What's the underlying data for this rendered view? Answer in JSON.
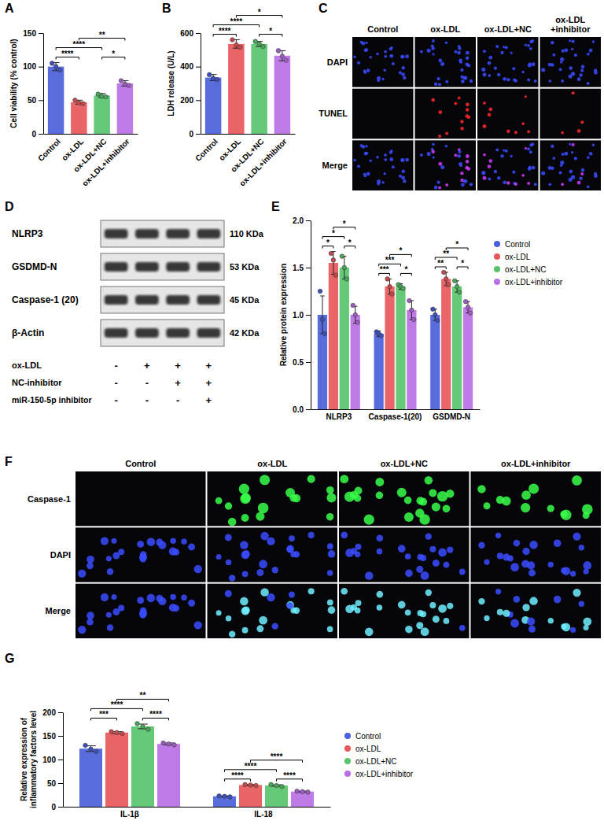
{
  "chart_data": [
    {
      "panel": "A",
      "type": "bar",
      "y_label": "Cell viability (% control)",
      "categories": [
        "Control",
        "ox-LDL",
        "ox-LDL+NC",
        "ox-LDL+inhibitor"
      ],
      "values": [
        100,
        47,
        57,
        75
      ],
      "errors": [
        6,
        3,
        3,
        4
      ],
      "points": [
        [
          105,
          100,
          95
        ],
        [
          50,
          46,
          45
        ],
        [
          59,
          56,
          55
        ],
        [
          79,
          74,
          72
        ]
      ],
      "colors": [
        "#4a5fd9",
        "#e8585b",
        "#58c46b",
        "#b86fe3"
      ],
      "ylim": [
        0,
        150
      ],
      "yticks": [
        0,
        50,
        100,
        150
      ],
      "brackets": [
        {
          "between": [
            0,
            1
          ],
          "label": "****"
        },
        {
          "between": [
            2,
            3
          ],
          "label": "*"
        },
        {
          "between": [
            0,
            2
          ],
          "label": "****"
        },
        {
          "between": [
            1,
            3
          ],
          "label": "**"
        }
      ]
    },
    {
      "panel": "B",
      "type": "bar",
      "y_label": "LDH release (U/L)",
      "categories": [
        "Control",
        "ox-LDL",
        "ox-LDL+NC",
        "ox-LDL+inhibitor"
      ],
      "values": [
        335,
        535,
        535,
        465
      ],
      "errors": [
        18,
        25,
        15,
        30
      ],
      "points": [
        [
          352,
          330,
          323
        ],
        [
          560,
          530,
          515
        ],
        [
          550,
          535,
          520
        ],
        [
          495,
          462,
          438
        ]
      ],
      "colors": [
        "#4a5fd9",
        "#e8585b",
        "#58c46b",
        "#b86fe3"
      ],
      "ylim": [
        0,
        600
      ],
      "yticks": [
        0,
        200,
        400,
        600
      ],
      "brackets": [
        {
          "between": [
            0,
            1
          ],
          "label": "****"
        },
        {
          "between": [
            2,
            3
          ],
          "label": "*"
        },
        {
          "between": [
            0,
            2
          ],
          "label": "****"
        },
        {
          "between": [
            1,
            3
          ],
          "label": "*"
        }
      ]
    },
    {
      "panel": "E",
      "type": "bar",
      "y_label": "Relative protein expression",
      "categories": [
        "NLRP3",
        "Caspase-1(20)",
        "GSDMD-N"
      ],
      "series": [
        {
          "name": "Control",
          "color": "#4a5fd9",
          "values": [
            1.0,
            0.8,
            1.0
          ],
          "errors": [
            0.2,
            0.03,
            0.06
          ],
          "points": [
            [
              1.25,
              0.95,
              0.8
            ],
            [
              0.82,
              0.8,
              0.78
            ],
            [
              1.06,
              1.0,
              0.94
            ]
          ]
        },
        {
          "name": "ox-LDL",
          "color": "#e8585b",
          "values": [
            1.55,
            1.3,
            1.38
          ],
          "errors": [
            0.12,
            0.08,
            0.07
          ],
          "points": [
            [
              1.65,
              1.58,
              1.42
            ],
            [
              1.38,
              1.3,
              1.22
            ],
            [
              1.45,
              1.38,
              1.32
            ]
          ]
        },
        {
          "name": "ox-LDL+NC",
          "color": "#58c46b",
          "values": [
            1.5,
            1.3,
            1.3
          ],
          "errors": [
            0.12,
            0.03,
            0.06
          ],
          "points": [
            [
              1.62,
              1.5,
              1.38
            ],
            [
              1.32,
              1.3,
              1.28
            ],
            [
              1.36,
              1.3,
              1.24
            ]
          ]
        },
        {
          "name": "ox-LDL+inhibitor",
          "color": "#b86fe3",
          "values": [
            1.0,
            1.05,
            1.08
          ],
          "errors": [
            0.09,
            0.1,
            0.06
          ],
          "points": [
            [
              1.1,
              1.0,
              0.92
            ],
            [
              1.15,
              1.05,
              0.95
            ],
            [
              1.14,
              1.08,
              1.02
            ]
          ]
        }
      ],
      "ylim": [
        0,
        2
      ],
      "yticks": [
        {
          "value": 0,
          "label": "0.0"
        },
        0.5,
        {
          "value": 1,
          "label": "1.0"
        },
        1.5,
        {
          "value": 2,
          "label": "2.0"
        }
      ],
      "legend": "right",
      "brackets": [
        {
          "category": 0,
          "between": [
            0,
            1
          ],
          "label": "*"
        },
        {
          "category": 0,
          "between": [
            2,
            3
          ],
          "label": "*"
        },
        {
          "category": 0,
          "between": [
            0,
            2
          ],
          "label": "*"
        },
        {
          "category": 0,
          "between": [
            1,
            3
          ],
          "label": "*"
        },
        {
          "category": 1,
          "between": [
            0,
            1
          ],
          "label": "***"
        },
        {
          "category": 1,
          "between": [
            2,
            3
          ],
          "label": "*"
        },
        {
          "category": 1,
          "between": [
            0,
            2
          ],
          "label": "***"
        },
        {
          "category": 1,
          "between": [
            1,
            3
          ],
          "label": "*"
        },
        {
          "category": 2,
          "between": [
            0,
            1
          ],
          "label": "**"
        },
        {
          "category": 2,
          "between": [
            2,
            3
          ],
          "label": "*"
        },
        {
          "category": 2,
          "between": [
            0,
            2
          ],
          "label": "**"
        },
        {
          "category": 2,
          "between": [
            1,
            3
          ],
          "label": "*"
        }
      ]
    },
    {
      "panel": "G",
      "type": "bar",
      "y_label": "Relative expression of inflammatory factors level",
      "categories": [
        "IL-1β",
        "IL-18"
      ],
      "series": [
        {
          "name": "Control",
          "color": "#4a5fd9",
          "values": [
            123,
            22
          ],
          "errors": [
            6,
            1
          ],
          "points": [
            [
              130,
              122,
              117
            ],
            [
              23,
              22,
              21
            ]
          ]
        },
        {
          "name": "ox-LDL",
          "color": "#e8585b",
          "values": [
            157,
            46
          ],
          "errors": [
            2,
            1
          ],
          "points": [
            [
              159,
              157,
              155
            ],
            [
              47,
              46,
              45
            ]
          ]
        },
        {
          "name": "ox-LDL+NC",
          "color": "#58c46b",
          "values": [
            170,
            45
          ],
          "errors": [
            5,
            1.5
          ],
          "points": [
            [
              176,
              170,
              164
            ],
            [
              47,
              45,
              43
            ]
          ]
        },
        {
          "name": "ox-LDL+inhibitor",
          "color": "#b86fe3",
          "values": [
            133,
            32
          ],
          "errors": [
            2,
            1
          ],
          "points": [
            [
              135,
              133,
              131
            ],
            [
              33,
              32,
              31
            ]
          ]
        }
      ],
      "ylim": [
        0,
        200
      ],
      "yticks": [
        0,
        50,
        100,
        150,
        200
      ],
      "legend": "right",
      "brackets": [
        {
          "category": 0,
          "between": [
            0,
            1
          ],
          "label": "***"
        },
        {
          "category": 0,
          "between": [
            2,
            3
          ],
          "label": "****"
        },
        {
          "category": 0,
          "between": [
            0,
            2
          ],
          "label": "****"
        },
        {
          "category": 0,
          "between": [
            1,
            3
          ],
          "label": "**"
        },
        {
          "category": 1,
          "between": [
            0,
            1
          ],
          "label": "****"
        },
        {
          "category": 1,
          "between": [
            2,
            3
          ],
          "label": "****"
        },
        {
          "category": 1,
          "between": [
            0,
            2
          ],
          "label": "****"
        },
        {
          "category": 1,
          "between": [
            1,
            3
          ],
          "label": "****"
        }
      ]
    }
  ],
  "image_panels": [
    {
      "panel": "C",
      "columns": [
        "Control",
        "ox-LDL",
        "ox-LDL+NC",
        "ox-LDL+inhibitor"
      ],
      "rows": [
        "DAPI",
        "TUNEL",
        "Merge"
      ],
      "colors": [
        "#3b4cff",
        "#ff2a2a",
        "#d23cff"
      ]
    },
    {
      "panel": "D",
      "bands": [
        {
          "label": "NLRP3",
          "size": "110 KDa"
        },
        {
          "label": "GSDMD-N",
          "size": "53 KDa"
        },
        {
          "label": "Caspase-1 (20)",
          "size": "45 KDa"
        },
        {
          "label": "β-Actin",
          "size": "42 KDa"
        }
      ],
      "conditions": [
        {
          "label": "ox-LDL",
          "marks": [
            "-",
            "+",
            "+",
            "+"
          ]
        },
        {
          "label": "NC-inhibitor",
          "marks": [
            "-",
            "-",
            "+",
            "+"
          ]
        },
        {
          "label": "miR-150-5p inhibitor",
          "marks": [
            "-",
            "-",
            "-",
            "+"
          ]
        }
      ]
    },
    {
      "panel": "F",
      "columns": [
        "Control",
        "ox-LDL",
        "ox-LDL+NC",
        "ox-LDL+inhibitor"
      ],
      "rows": [
        "Caspase-1",
        "DAPI",
        "Merge"
      ],
      "colors": [
        "#39ff4a",
        "#3b4cff",
        "#6ff0ff"
      ]
    }
  ]
}
